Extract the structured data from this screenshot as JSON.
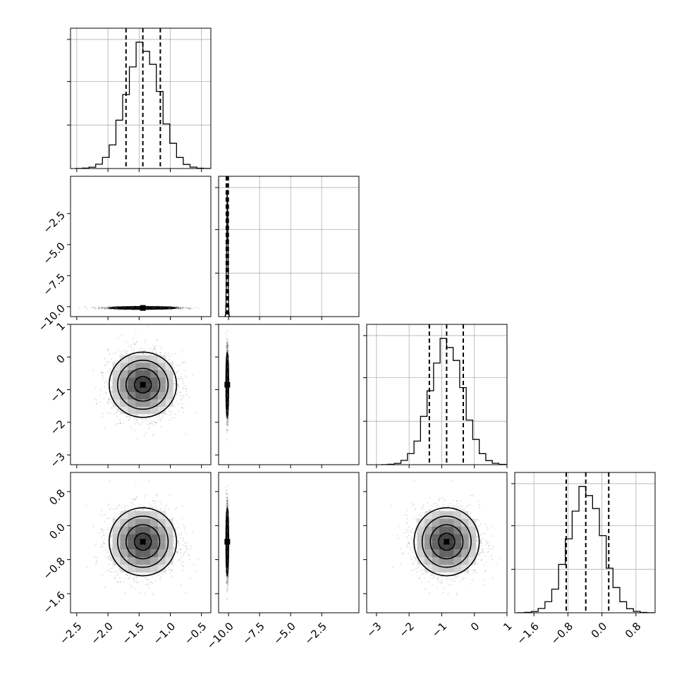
{
  "chart_data": {
    "type": "corner",
    "parameters": 4,
    "colors": {
      "line": "#000000",
      "grid": "#b0b0b0",
      "points": "#000000"
    },
    "grid": true,
    "axes": [
      {
        "range": [
          -2.6,
          -0.35
        ],
        "ticks": [
          -2.5,
          -2.0,
          -1.5,
          -1.0,
          -0.5
        ],
        "tick_labels": [
          "−2.5",
          "−2.0",
          "−1.5",
          "−1.0",
          "−0.5"
        ]
      },
      {
        "range": [
          -10.8,
          0.5
        ],
        "ticks": [
          -10.0,
          -7.5,
          -5.0,
          -2.5
        ],
        "tick_labels": [
          "−10.0",
          "−7.5",
          "−5.0",
          "−2.5"
        ]
      },
      {
        "range": [
          -3.3,
          1.0
        ],
        "ticks": [
          -3,
          -2,
          -1,
          0,
          1
        ],
        "tick_labels": [
          "−3",
          "−2",
          "−1",
          "0",
          "1"
        ]
      },
      {
        "range": [
          -2.05,
          1.25
        ],
        "ticks": [
          -1.6,
          -0.8,
          0.0,
          0.8
        ],
        "tick_labels": [
          "−1.6",
          "−0.8",
          "0.0",
          "0.8"
        ]
      }
    ],
    "marginals": [
      {
        "param": 0,
        "mean": -1.44,
        "sd": 0.27,
        "quantiles": [
          -1.71,
          -1.44,
          -1.16
        ]
      },
      {
        "param": 1,
        "mean": -10.1,
        "sd": 0.05,
        "quantiles": [
          -10.18,
          -10.1,
          -10.02
        ]
      },
      {
        "param": 2,
        "mean": -0.85,
        "sd": 0.5,
        "quantiles": [
          -1.38,
          -0.85,
          -0.34
        ]
      },
      {
        "param": 3,
        "mean": -0.38,
        "sd": 0.4,
        "quantiles": [
          -0.84,
          -0.38,
          0.16
        ]
      }
    ],
    "joint_panels": [
      {
        "x": 0,
        "y": 1
      },
      {
        "x": 0,
        "y": 2
      },
      {
        "x": 1,
        "y": 2
      },
      {
        "x": 0,
        "y": 3
      },
      {
        "x": 1,
        "y": 3
      },
      {
        "x": 2,
        "y": 3
      }
    ]
  }
}
